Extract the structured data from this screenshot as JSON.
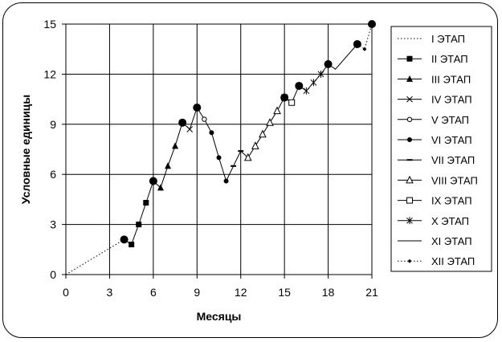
{
  "chart_data": {
    "type": "line",
    "xlabel": "Месяцы",
    "ylabel": "Условные единицы",
    "xlim": [
      0,
      21
    ],
    "ylim": [
      0,
      15
    ],
    "xticks": [
      "0",
      "3",
      "6",
      "9",
      "12",
      "15",
      "18",
      "21"
    ],
    "yticks": [
      "0",
      "3",
      "6",
      "9",
      "12",
      "15"
    ],
    "grid": true,
    "legend_position": "right",
    "series": [
      {
        "name": "I ЭТАП",
        "marker": "none",
        "line": "dotted",
        "x": [
          0,
          4
        ],
        "y": [
          0,
          2.1
        ]
      },
      {
        "name": "II ЭТАП",
        "marker": "square",
        "line": "solid",
        "x": [
          4,
          4.5,
          5,
          5.5,
          6
        ],
        "y": [
          2.1,
          1.8,
          3.0,
          4.3,
          5.6
        ]
      },
      {
        "name": "III ЭТАП",
        "marker": "triangle",
        "line": "solid",
        "x": [
          6,
          6.5,
          7,
          7.5,
          8
        ],
        "y": [
          5.6,
          5.2,
          6.5,
          7.7,
          9.1
        ]
      },
      {
        "name": "IV ЭТАП",
        "marker": "x",
        "line": "solid",
        "x": [
          8,
          8.5,
          9
        ],
        "y": [
          9.1,
          8.7,
          10.0
        ]
      },
      {
        "name": "V ЭТАП",
        "marker": "circle-open",
        "line": "solid",
        "x": [
          9,
          9.5
        ],
        "y": [
          10.0,
          9.3
        ]
      },
      {
        "name": "VI ЭТАП",
        "marker": "circle",
        "line": "solid",
        "x": [
          9.5,
          10,
          10.5,
          11
        ],
        "y": [
          9.3,
          8.5,
          7.0,
          5.6
        ]
      },
      {
        "name": "VII ЭТАП",
        "marker": "dash",
        "line": "solid",
        "x": [
          11,
          11.5,
          12
        ],
        "y": [
          5.6,
          6.5,
          7.4
        ]
      },
      {
        "name": "VIII ЭТАП",
        "marker": "triangle-open",
        "line": "solid",
        "x": [
          12,
          12.5,
          13,
          13.5,
          14,
          14.5
        ],
        "y": [
          7.4,
          7.0,
          7.7,
          8.4,
          9.1,
          9.8
        ]
      },
      {
        "name": "IX ЭТАП",
        "marker": "square-open",
        "line": "solid",
        "x": [
          14.5,
          15,
          15.5
        ],
        "y": [
          9.8,
          10.6,
          10.3
        ]
      },
      {
        "name": "X ЭТАП",
        "marker": "star",
        "line": "solid",
        "x": [
          15.5,
          16,
          16.5,
          17,
          17.5
        ],
        "y": [
          10.3,
          11.3,
          11.0,
          11.5,
          12.0
        ]
      },
      {
        "name": "XI ЭТАП",
        "marker": "none",
        "line": "solid",
        "x": [
          17.5,
          18,
          18.5,
          20
        ],
        "y": [
          12.0,
          12.6,
          12.3,
          13.8
        ]
      },
      {
        "name": "XII ЭТАП",
        "marker": "diamond-small",
        "line": "dotted",
        "x": [
          20,
          20.5,
          21
        ],
        "y": [
          13.8,
          13.5,
          15.0
        ]
      }
    ],
    "highlight_points": {
      "x": [
        4,
        6,
        8,
        9,
        15,
        16,
        18,
        20,
        21
      ],
      "y": [
        2.1,
        5.6,
        9.1,
        10.0,
        10.6,
        11.3,
        12.6,
        13.8,
        15.0
      ]
    }
  }
}
